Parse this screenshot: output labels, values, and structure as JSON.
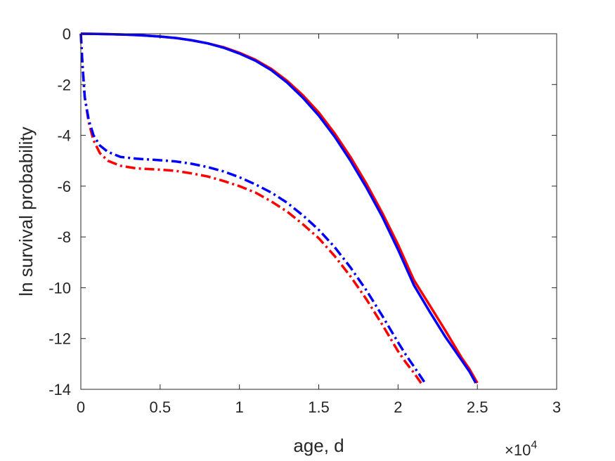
{
  "chart_data": {
    "type": "line",
    "title": "",
    "xlabel": "age, d",
    "ylabel": "ln survival probability",
    "x_exponent_label": {
      "base": "×10",
      "exponent": "4"
    },
    "xlim": [
      0,
      30000
    ],
    "ylim": [
      -14,
      0
    ],
    "xticks": [
      0,
      5000,
      10000,
      15000,
      20000,
      25000,
      30000
    ],
    "xtick_labels": [
      "0",
      "0.5",
      "1",
      "1.5",
      "2",
      "2.5",
      "3"
    ],
    "yticks": [
      0,
      -2,
      -4,
      -6,
      -8,
      -10,
      -12,
      -14
    ],
    "ytick_labels": [
      "0",
      "-2",
      "-4",
      "-6",
      "-8",
      "-10",
      "-12",
      "-14"
    ],
    "grid": false,
    "legend": false,
    "series": [
      {
        "color": "#ff0000",
        "style": "solid",
        "x": [
          0,
          1000,
          2000,
          3000,
          4000,
          5000,
          6000,
          7000,
          8000,
          9000,
          10000,
          11000,
          12000,
          13000,
          14000,
          15000,
          16000,
          17000,
          18000,
          19000,
          20000,
          21000,
          22000,
          23000,
          24000,
          24500,
          25000
        ],
        "y": [
          0,
          -0.005,
          -0.02,
          -0.04,
          -0.07,
          -0.11,
          -0.17,
          -0.26,
          -0.38,
          -0.53,
          -0.75,
          -1.02,
          -1.38,
          -1.85,
          -2.42,
          -3.1,
          -3.92,
          -4.85,
          -5.9,
          -7.05,
          -8.3,
          -9.7,
          -10.7,
          -11.7,
          -12.75,
          -13.2,
          -13.75
        ]
      },
      {
        "color": "#0000ff",
        "style": "solid",
        "x": [
          0,
          1000,
          2000,
          3000,
          4000,
          5000,
          6000,
          7000,
          8000,
          9000,
          10000,
          11000,
          12000,
          13000,
          14000,
          15000,
          16000,
          17000,
          18000,
          19000,
          20000,
          21000,
          22000,
          23000,
          24000,
          24500,
          24900
        ],
        "y": [
          0,
          -0.005,
          -0.02,
          -0.04,
          -0.07,
          -0.11,
          -0.17,
          -0.26,
          -0.38,
          -0.55,
          -0.78,
          -1.06,
          -1.43,
          -1.92,
          -2.52,
          -3.22,
          -4.05,
          -5.0,
          -6.05,
          -7.2,
          -8.5,
          -9.9,
          -10.95,
          -11.95,
          -12.85,
          -13.3,
          -13.75
        ]
      },
      {
        "color": "#ff0000",
        "style": "dashdot",
        "x": [
          0,
          100,
          250,
          500,
          800,
          1200,
          1700,
          2500,
          3500,
          5000,
          6000,
          7000,
          8000,
          9000,
          10000,
          11000,
          12000,
          13000,
          14000,
          15000,
          16000,
          17000,
          18000,
          19000,
          20000,
          20500,
          21000,
          21500
        ],
        "y": [
          0,
          -1.2,
          -2.5,
          -3.5,
          -4.2,
          -4.7,
          -5.0,
          -5.2,
          -5.3,
          -5.35,
          -5.4,
          -5.5,
          -5.62,
          -5.8,
          -6.0,
          -6.25,
          -6.6,
          -7.0,
          -7.5,
          -8.05,
          -8.75,
          -9.55,
          -10.45,
          -11.45,
          -12.5,
          -12.95,
          -13.35,
          -13.8
        ]
      },
      {
        "color": "#0000ff",
        "style": "dashdot",
        "x": [
          0,
          100,
          250,
          500,
          800,
          1200,
          1700,
          2500,
          3500,
          5000,
          6000,
          7000,
          8000,
          9000,
          10000,
          11000,
          12000,
          13000,
          14000,
          15000,
          16000,
          17000,
          18000,
          19000,
          20000,
          20500,
          21000,
          21700
        ],
        "y": [
          0,
          -1.2,
          -2.5,
          -3.4,
          -4.0,
          -4.4,
          -4.65,
          -4.85,
          -4.92,
          -4.98,
          -5.03,
          -5.12,
          -5.25,
          -5.42,
          -5.65,
          -5.93,
          -6.25,
          -6.65,
          -7.15,
          -7.72,
          -8.4,
          -9.2,
          -10.1,
          -11.1,
          -12.15,
          -12.65,
          -13.1,
          -13.75
        ]
      }
    ]
  }
}
